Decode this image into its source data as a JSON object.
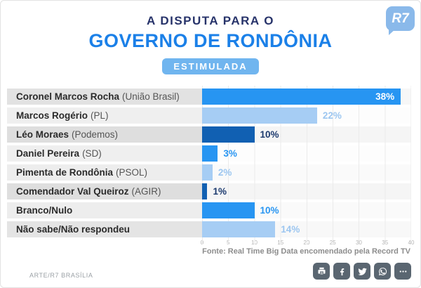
{
  "brand": {
    "logo_text": "R7",
    "logo_color": "#8ab9ea"
  },
  "header": {
    "title_line1": "A DISPUTA PARA O",
    "title_line2": "GOVERNO DE RONDÔNIA",
    "badge": "ESTIMULADA",
    "accent_color": "#1b80e8",
    "badge_bg": "#70b5ef"
  },
  "chart_data": {
    "type": "bar",
    "orientation": "horizontal",
    "title": "A DISPUTA PARA O GOVERNO DE RONDÔNIA (ESTIMULADA)",
    "categories": [
      "Coronel Marcos Rocha (União Brasil)",
      "Marcos Rogério (PL)",
      "Léo Moraes (Podemos)",
      "Daniel Pereira (SD)",
      "Pimenta de Rondônia (PSOL)",
      "Comendador Val Queiroz (AGIR)",
      "Branco/Nulo",
      "Não sabe/Não respondeu"
    ],
    "label_parts": [
      {
        "name": "Coronel Marcos Rocha",
        "party": "(União Brasil)"
      },
      {
        "name": "Marcos Rogério",
        "party": "(PL)"
      },
      {
        "name": "Léo Moraes",
        "party": "(Podemos)"
      },
      {
        "name": "Daniel Pereira",
        "party": "(SD)"
      },
      {
        "name": "Pimenta de Rondônia",
        "party": "(PSOL)"
      },
      {
        "name": "Comendador Val Queiroz",
        "party": "(AGIR)"
      },
      {
        "name": "Branco/Nulo",
        "party": ""
      },
      {
        "name": "Não sabe/Não respondeu",
        "party": ""
      }
    ],
    "values": [
      38,
      22,
      10,
      3,
      2,
      1,
      10,
      14
    ],
    "value_labels": [
      "38%",
      "22%",
      "10%",
      "3%",
      "2%",
      "1%",
      "10%",
      "14%"
    ],
    "value_inside": [
      true,
      false,
      false,
      false,
      false,
      false,
      false,
      false
    ],
    "bar_colors": [
      "#2795f2",
      "#a6cdf4",
      "#1160b2",
      "#2795f2",
      "#a6cdf4",
      "#1160b2",
      "#2795f2",
      "#a6cdf4"
    ],
    "value_colors": [
      "#ffffff",
      "#9cc6f0",
      "#1c3a6e",
      "#2795f2",
      "#9cc6f0",
      "#1c3a6e",
      "#2795f2",
      "#9cc6f0"
    ],
    "row_label_shades": [
      "#e2e2e2",
      "#efefef",
      "#dedede",
      "#efefef",
      "#ededed",
      "#dedede",
      "#ededed",
      "#e4e4e4"
    ],
    "row_plot_shades": [
      "#f7f7f7",
      "#fdfdfd",
      "#f5f5f5",
      "#fdfdfd",
      "#fafafa",
      "#f5f5f5",
      "#fafafa",
      "#f8f8f8"
    ],
    "xlim": [
      0,
      40
    ],
    "x_ticks": [
      "0",
      "5",
      "10",
      "15",
      "20",
      "25",
      "30",
      "35",
      "40"
    ],
    "grid": true,
    "legend": false,
    "source": "Fonte: Real Time Big Data encomendado pela Record TV"
  },
  "footer": {
    "credit": "ARTE/R7 BRASÍLIA",
    "social": [
      "print",
      "facebook",
      "twitter",
      "whatsapp",
      "more"
    ],
    "icon_bg": "#5a6671"
  }
}
